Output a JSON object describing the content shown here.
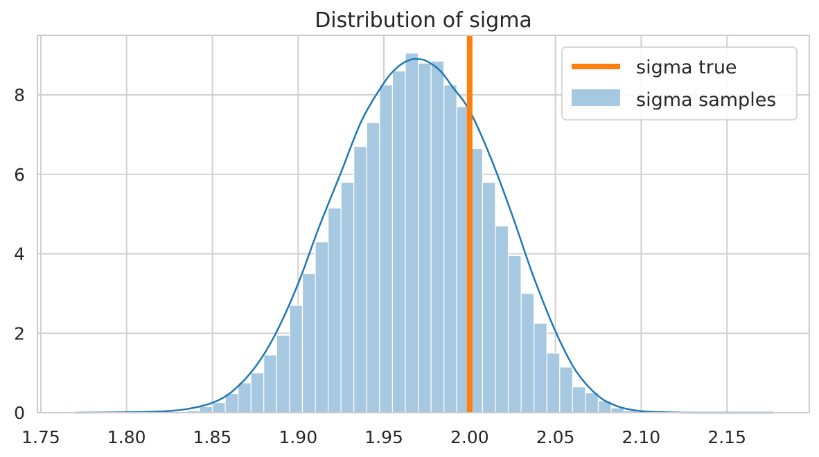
{
  "chart_data": {
    "type": "bar",
    "title": "Distribution of sigma",
    "xlabel": "",
    "ylabel": "",
    "xlim": [
      1.748,
      2.198
    ],
    "ylim": [
      0,
      9.5
    ],
    "xticks": [
      {
        "value": 1.75,
        "label": "1.75"
      },
      {
        "value": 1.8,
        "label": "1.80"
      },
      {
        "value": 1.85,
        "label": "1.85"
      },
      {
        "value": 1.9,
        "label": "1.90"
      },
      {
        "value": 1.95,
        "label": "1.95"
      },
      {
        "value": 2.0,
        "label": "2.00"
      },
      {
        "value": 2.05,
        "label": "2.05"
      },
      {
        "value": 2.1,
        "label": "2.10"
      },
      {
        "value": 2.15,
        "label": "2.15"
      }
    ],
    "yticks": [
      {
        "value": 0,
        "label": "0"
      },
      {
        "value": 2,
        "label": "2"
      },
      {
        "value": 4,
        "label": "4"
      },
      {
        "value": 6,
        "label": "6"
      },
      {
        "value": 8,
        "label": "8"
      }
    ],
    "grid": true,
    "legend_position": "top-right",
    "histogram": {
      "name": "sigma samples",
      "color": "#a6c8e0",
      "bin_edges": [
        1.835,
        1.8425,
        1.85,
        1.8575,
        1.865,
        1.8725,
        1.88,
        1.8875,
        1.895,
        1.9025,
        1.91,
        1.9175,
        1.925,
        1.9325,
        1.94,
        1.9475,
        1.955,
        1.9625,
        1.97,
        1.9775,
        1.985,
        1.9925,
        2.0,
        2.0075,
        2.015,
        2.0225,
        2.03,
        2.0375,
        2.045,
        2.0525,
        2.06,
        2.0675,
        2.075,
        2.0825,
        2.09,
        2.0975
      ],
      "values": [
        0.05,
        0.15,
        0.25,
        0.48,
        0.75,
        1.0,
        1.45,
        1.95,
        2.7,
        3.5,
        4.3,
        5.15,
        5.8,
        6.7,
        7.3,
        8.25,
        8.6,
        9.05,
        8.8,
        8.85,
        8.25,
        7.7,
        6.65,
        5.8,
        4.7,
        3.95,
        3.0,
        2.25,
        1.5,
        1.15,
        0.65,
        0.5,
        0.3,
        0.12,
        0.05
      ]
    },
    "kde": {
      "color": "#1f77b4",
      "x": [
        1.77,
        1.8,
        1.82,
        1.835,
        1.85,
        1.862,
        1.875,
        1.887,
        1.9,
        1.912,
        1.925,
        1.937,
        1.95,
        1.958,
        1.965,
        1.97,
        1.975,
        1.983,
        1.99,
        2.0,
        2.012,
        2.025,
        2.037,
        2.05,
        2.062,
        2.075,
        2.087,
        2.1,
        2.115,
        2.13,
        2.15,
        2.177
      ],
      "y": [
        0.0,
        0.01,
        0.03,
        0.09,
        0.25,
        0.55,
        1.15,
        2.0,
        3.25,
        4.65,
        6.05,
        7.35,
        8.3,
        8.7,
        8.88,
        8.9,
        8.85,
        8.6,
        8.2,
        7.6,
        6.45,
        4.95,
        3.45,
        2.05,
        1.05,
        0.42,
        0.15,
        0.04,
        0.01,
        0.0,
        0.0,
        0.0
      ]
    },
    "vline": {
      "name": "sigma true",
      "x": 2.0,
      "color": "#ff7f0e"
    }
  }
}
